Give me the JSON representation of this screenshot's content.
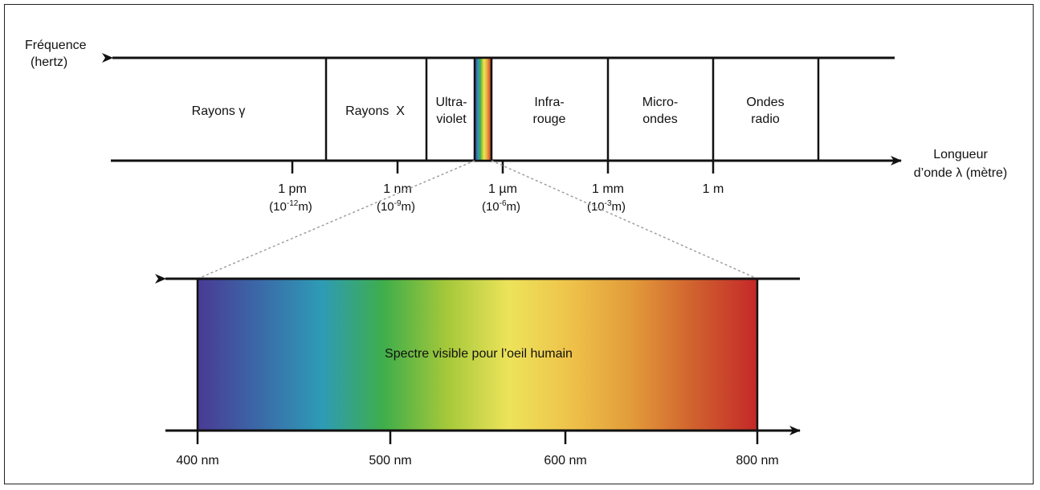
{
  "axis_top": {
    "frequency_label": [
      "Fréquence",
      "(hertz)"
    ],
    "wavelength_label": [
      "Longueur",
      "d’onde λ (mètre)"
    ]
  },
  "bands": [
    {
      "id": "gamma",
      "lines": [
        "Rayons γ"
      ]
    },
    {
      "id": "xray",
      "lines": [
        "Rayons  X"
      ]
    },
    {
      "id": "uv",
      "lines": [
        "Ultra-",
        "violet"
      ]
    },
    {
      "id": "ir",
      "lines": [
        "Infra-",
        "rouge"
      ]
    },
    {
      "id": "micro",
      "lines": [
        "Micro-",
        "ondes"
      ]
    },
    {
      "id": "radio",
      "lines": [
        "Ondes",
        "radio"
      ]
    }
  ],
  "top_ticks": [
    {
      "id": "pm",
      "label": "1 pm",
      "base": "(10",
      "exp": "-12",
      "unit": "m)"
    },
    {
      "id": "nm",
      "label": "1 nm",
      "base": "(10",
      "exp": "-9",
      "unit": "m)"
    },
    {
      "id": "um",
      "label": "1 µm",
      "base": "(10",
      "exp": "-6",
      "unit": "m)"
    },
    {
      "id": "mm",
      "label": "1 mm",
      "base": "(10",
      "exp": "-3",
      "unit": "m)"
    },
    {
      "id": "m",
      "label": "1 m",
      "base": "",
      "exp": "",
      "unit": ""
    }
  ],
  "visible": {
    "title": "Spectre visible pour l’oeil humain",
    "ticks": [
      "400 nm",
      "500 nm",
      "600 nm",
      "800 nm"
    ],
    "colors": [
      "#4a3a94",
      "#3a6aa8",
      "#2e9bb5",
      "#3fae4a",
      "#a4c83a",
      "#ede35a",
      "#eec24a",
      "#e29a3a",
      "#d0602e",
      "#c42828"
    ]
  },
  "palette": {
    "line": "#111111",
    "dash": "#999999"
  }
}
